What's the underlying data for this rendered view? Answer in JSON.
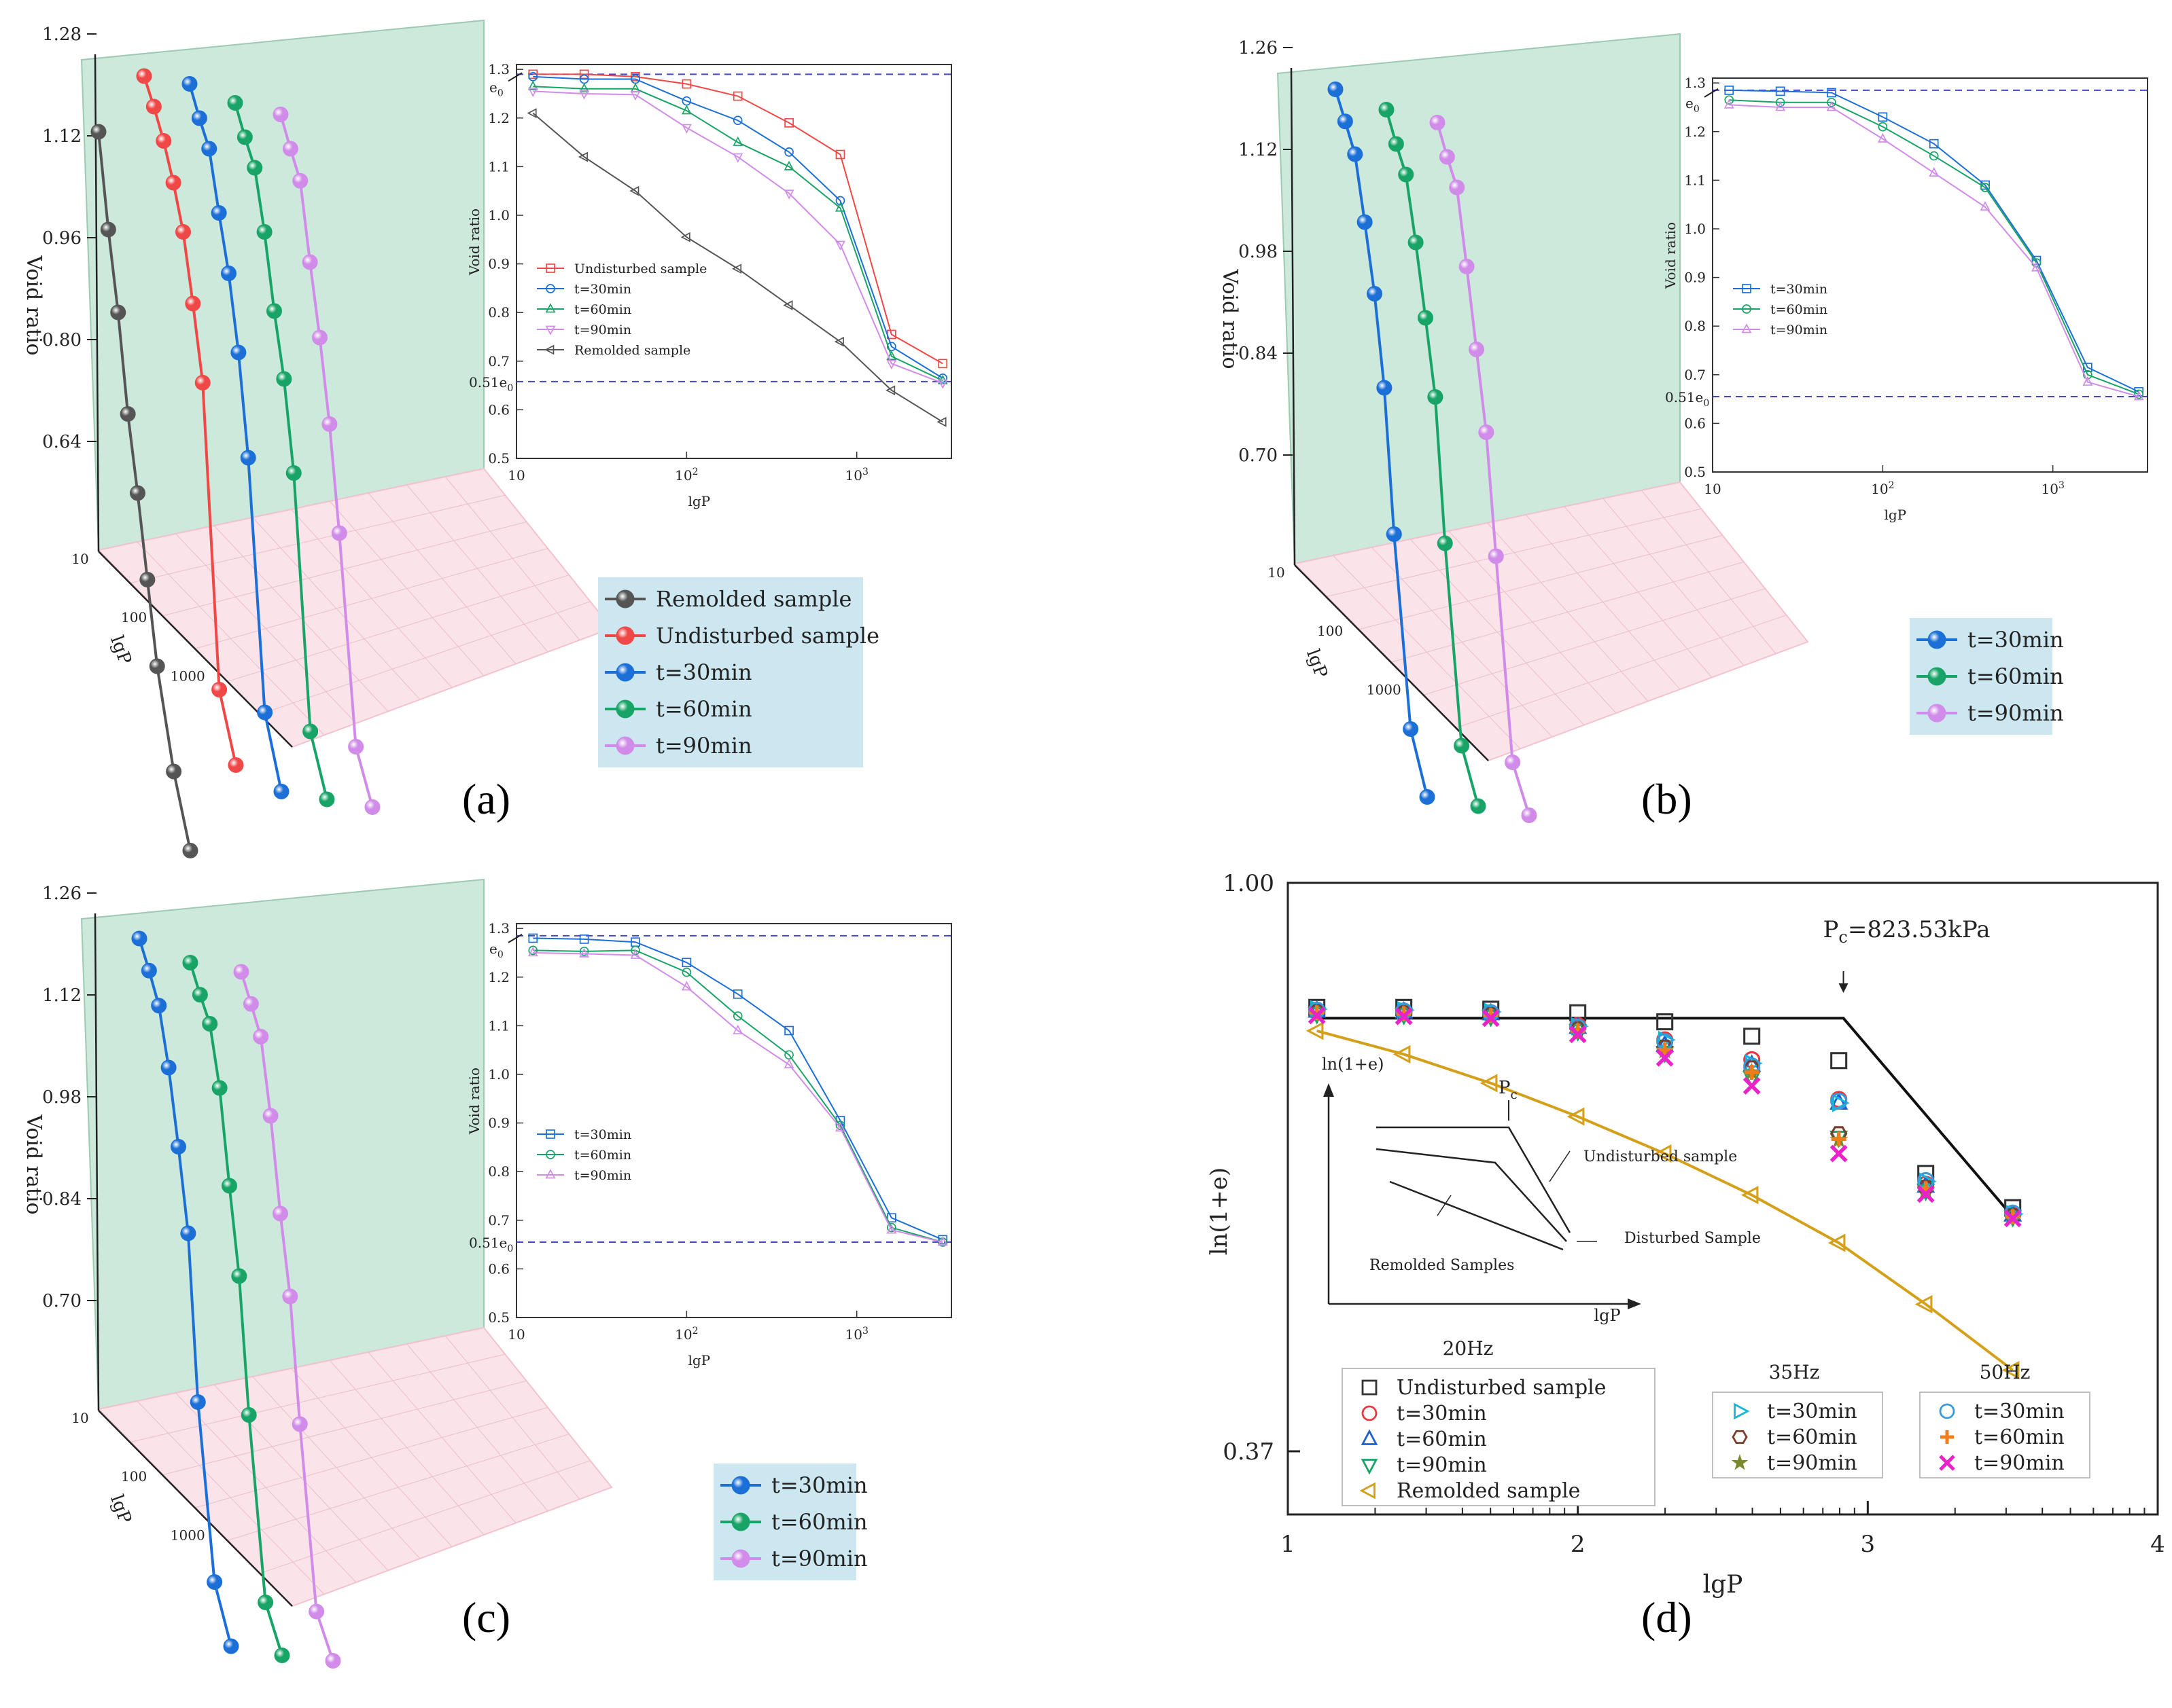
{
  "figure": {
    "panel_labels": [
      "(a)",
      "(b)",
      "(c)",
      "(d)"
    ]
  },
  "colors": {
    "remolded": "#555555",
    "undisturbed": "#f04747",
    "t30": "#1b6fd6",
    "t60": "#19a467",
    "t90": "#d08ce8",
    "wall_green": "#cde9dc",
    "floor_pink": "#fbe3ea",
    "legend_bg": "#cde7f0",
    "e0_line": "#4444cc"
  },
  "chart_data": [
    {
      "panel": "(a)",
      "type": "line",
      "subtype": "3d-waterfall",
      "ylabel": "Void ratio",
      "xlabel": "lgP",
      "zticks": [
        "10",
        "100",
        "1000"
      ],
      "yticks": [
        "0.64",
        "0.80",
        "0.96",
        "1.12",
        "1.28"
      ],
      "legend": [
        "Remolded sample",
        "Undisturbed sample",
        "t=30min",
        "t=60min",
        "t=90min"
      ],
      "inset": {
        "xlabel": "lgP",
        "ylabel": "Void ratio",
        "xticks": [
          "10",
          "10²",
          "10³"
        ],
        "yticks": [
          "0.5",
          "0.6",
          "0.7",
          "0.8",
          "0.9",
          "1.0",
          "1.1",
          "1.2",
          "1.3"
        ],
        "ylim": [
          0.5,
          1.3
        ],
        "e0": 1.29,
        "e0_label": "e0",
        "e51_value": 0.658,
        "e51_label": "0.51e0",
        "x": [
          12.5,
          25,
          50,
          100,
          200,
          400,
          800,
          1600,
          3200
        ],
        "series": [
          {
            "name": "Undisturbed sample",
            "color": "#f04747",
            "marker": "square",
            "values": [
              1.29,
              1.29,
              1.285,
              1.27,
              1.245,
              1.19,
              1.125,
              0.755,
              0.695
            ]
          },
          {
            "name": "t=30min",
            "color": "#1b6fd6",
            "marker": "circle",
            "values": [
              1.285,
              1.28,
              1.28,
              1.235,
              1.195,
              1.13,
              1.03,
              0.73,
              0.665
            ]
          },
          {
            "name": "t=60min",
            "color": "#19a467",
            "marker": "triangle",
            "values": [
              1.265,
              1.26,
              1.26,
              1.215,
              1.15,
              1.1,
              1.015,
              0.71,
              0.66
            ]
          },
          {
            "name": "t=90min",
            "color": "#d08ce8",
            "marker": "triangle-down",
            "values": [
              1.255,
              1.25,
              1.248,
              1.18,
              1.12,
              1.045,
              0.94,
              0.695,
              0.655
            ]
          },
          {
            "name": "Remolded sample",
            "color": "#555555",
            "marker": "triangle-left",
            "values": [
              1.21,
              1.12,
              1.05,
              0.955,
              0.89,
              0.815,
              0.74,
              0.64,
              0.575
            ]
          }
        ]
      }
    },
    {
      "panel": "(b)",
      "type": "line",
      "subtype": "3d-waterfall",
      "ylabel": "Void ratio",
      "xlabel": "lgP",
      "zticks": [
        "10",
        "100",
        "1000"
      ],
      "yticks": [
        "0.70",
        "0.84",
        "0.98",
        "1.12",
        "1.26"
      ],
      "legend": [
        "t=30min",
        "t=60min",
        "t=90min"
      ],
      "inset": {
        "xlabel": "lgP",
        "ylabel": "Void ratio",
        "xticks": [
          "10",
          "10²",
          "10³"
        ],
        "yticks": [
          "0.5",
          "0.6",
          "0.7",
          "0.8",
          "0.9",
          "1.0",
          "1.1",
          "1.2",
          "1.3"
        ],
        "ylim": [
          0.5,
          1.3
        ],
        "e0": 1.285,
        "e0_label": "e0",
        "e51_value": 0.655,
        "e51_label": "0.51e0",
        "x": [
          12.5,
          25,
          50,
          100,
          200,
          400,
          800,
          1600,
          3200
        ],
        "series": [
          {
            "name": "t=30min",
            "color": "#1b6fd6",
            "marker": "square",
            "values": [
              1.285,
              1.283,
              1.28,
              1.23,
              1.175,
              1.09,
              0.935,
              0.715,
              0.665
            ]
          },
          {
            "name": "t=60min",
            "color": "#19a467",
            "marker": "circle",
            "values": [
              1.265,
              1.26,
              1.26,
              1.21,
              1.15,
              1.085,
              0.93,
              0.7,
              0.66
            ]
          },
          {
            "name": "t=90min",
            "color": "#d08ce8",
            "marker": "triangle",
            "values": [
              1.255,
              1.25,
              1.25,
              1.185,
              1.115,
              1.045,
              0.92,
              0.685,
              0.655
            ]
          }
        ]
      }
    },
    {
      "panel": "(c)",
      "type": "line",
      "subtype": "3d-waterfall",
      "ylabel": "Void ratio",
      "xlabel": "lgP",
      "zticks": [
        "10",
        "100",
        "1000"
      ],
      "yticks": [
        "0.70",
        "0.84",
        "0.98",
        "1.12",
        "1.26"
      ],
      "legend": [
        "t=30min",
        "t=60min",
        "t=90min"
      ],
      "inset": {
        "xlabel": "lgP",
        "ylabel": "Void ratio",
        "xticks": [
          "10",
          "10²",
          "10³"
        ],
        "yticks": [
          "0.5",
          "0.6",
          "0.7",
          "0.8",
          "0.9",
          "1.0",
          "1.1",
          "1.2",
          "1.3"
        ],
        "ylim": [
          0.5,
          1.3
        ],
        "e0": 1.285,
        "e0_label": "e0",
        "e51_value": 0.655,
        "e51_label": "0.51e0",
        "x": [
          12.5,
          25,
          50,
          100,
          200,
          400,
          800,
          1600,
          3200
        ],
        "series": [
          {
            "name": "t=30min",
            "color": "#1b6fd6",
            "marker": "square",
            "values": [
              1.28,
              1.278,
              1.272,
              1.23,
              1.165,
              1.09,
              0.905,
              0.705,
              0.66
            ]
          },
          {
            "name": "t=60min",
            "color": "#19a467",
            "marker": "circle",
            "values": [
              1.255,
              1.253,
              1.255,
              1.21,
              1.12,
              1.04,
              0.895,
              0.685,
              0.655
            ]
          },
          {
            "name": "t=90min",
            "color": "#d08ce8",
            "marker": "triangle",
            "values": [
              1.25,
              1.248,
              1.245,
              1.18,
              1.09,
              1.02,
              0.89,
              0.68,
              0.655
            ]
          }
        ]
      }
    },
    {
      "panel": "(d)",
      "type": "scatter",
      "xlabel": "lgP",
      "ylabel": "ln(1+e)",
      "xlim": [
        1,
        4
      ],
      "ylim": [
        0.3,
        1.0
      ],
      "xticks": [
        "1",
        "2",
        "3",
        "4"
      ],
      "yticks": [
        "0.37",
        "1.00"
      ],
      "x": [
        1.1,
        1.4,
        1.7,
        2.0,
        2.3,
        2.6,
        2.9,
        3.2,
        3.5
      ],
      "annotation": "Pc=823.53kPa",
      "pc_x": 2.916,
      "bilinear_fit": {
        "plateau": 0.85,
        "end_x": 3.5,
        "end_y": 0.63,
        "color": "#111111"
      },
      "remolded_fit": {
        "color": "#d4a01a"
      },
      "groups": [
        "20Hz",
        "35Hz",
        "50Hz"
      ],
      "series": [
        {
          "name": "Undisturbed sample",
          "group": "20Hz",
          "color": "#333333",
          "marker": "square",
          "values": [
            0.862,
            0.862,
            0.86,
            0.856,
            0.846,
            0.83,
            0.803,
            0.678,
            0.64
          ]
        },
        {
          "name": "t=30min",
          "group": "20Hz",
          "color": "#e8373f",
          "marker": "circle",
          "values": [
            0.858,
            0.858,
            0.856,
            0.842,
            0.826,
            0.804,
            0.76,
            0.666,
            0.633
          ]
        },
        {
          "name": "t=60min",
          "group": "20Hz",
          "color": "#1f5fd4",
          "marker": "triangle",
          "values": [
            0.858,
            0.857,
            0.855,
            0.84,
            0.82,
            0.798,
            0.756,
            0.664,
            0.632
          ]
        },
        {
          "name": "t=90min",
          "group": "20Hz",
          "color": "#19a467",
          "marker": "triangle-down",
          "values": [
            0.855,
            0.854,
            0.852,
            0.836,
            0.812,
            0.784,
            0.718,
            0.659,
            0.63
          ]
        },
        {
          "name": "Remolded sample",
          "group": "20Hz",
          "color": "#d4a01a",
          "marker": "triangle-left",
          "values": [
            0.836,
            0.81,
            0.778,
            0.741,
            0.7,
            0.654,
            0.601,
            0.533,
            0.46
          ]
        },
        {
          "name": "t=30min",
          "group": "35Hz",
          "color": "#16b7d6",
          "marker": "triangle-right",
          "values": [
            0.86,
            0.859,
            0.857,
            0.841,
            0.826,
            0.8,
            0.756,
            0.669,
            0.633
          ]
        },
        {
          "name": "t=60min",
          "group": "35Hz",
          "color": "#7a3d2a",
          "marker": "hexagon",
          "values": [
            0.857,
            0.856,
            0.854,
            0.838,
            0.818,
            0.795,
            0.722,
            0.662,
            0.631
          ]
        },
        {
          "name": "t=90min",
          "group": "35Hz",
          "color": "#7a8a2a",
          "marker": "star",
          "values": [
            0.855,
            0.854,
            0.852,
            0.836,
            0.814,
            0.79,
            0.715,
            0.66,
            0.63
          ]
        },
        {
          "name": "t=30min",
          "group": "50Hz",
          "color": "#3a9ad9",
          "marker": "circle",
          "values": [
            0.859,
            0.858,
            0.856,
            0.84,
            0.824,
            0.797,
            0.758,
            0.67,
            0.634
          ]
        },
        {
          "name": "t=60min",
          "group": "50Hz",
          "color": "#f07d1a",
          "marker": "plus",
          "values": [
            0.856,
            0.855,
            0.853,
            0.836,
            0.815,
            0.79,
            0.716,
            0.661,
            0.63
          ]
        },
        {
          "name": "t=90min",
          "group": "50Hz",
          "color": "#e824c8",
          "marker": "x",
          "values": [
            0.853,
            0.852,
            0.85,
            0.832,
            0.806,
            0.775,
            0.7,
            0.655,
            0.628
          ]
        }
      ],
      "inset_schematic": {
        "xlabel": "lgP",
        "ylabel": "ln(1+e)",
        "pc_label": "Pc",
        "labels": [
          "Undisturbed sample",
          "Disturbed Sample",
          "Remolded Samples"
        ]
      }
    }
  ]
}
